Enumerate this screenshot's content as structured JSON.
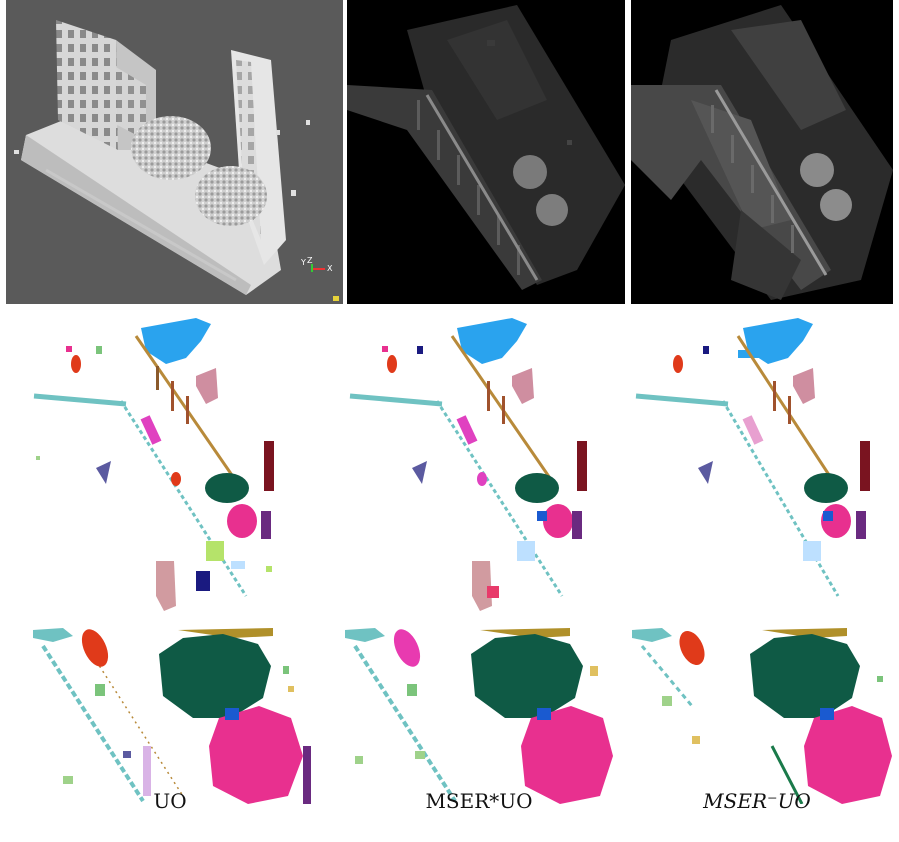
{
  "figure": {
    "axis_gizmo": {
      "y_label": "Y",
      "z_label": "Z",
      "x_label": "X"
    },
    "captions": [
      {
        "text": "UO"
      },
      {
        "text": "MSER*UO"
      },
      {
        "text": "MSER⁻UO"
      }
    ],
    "colors": {
      "background_dark": "#000000",
      "render_bg": "#5a5a5a",
      "tree_green": "#0f5a45",
      "tree_pink": "#e8308f",
      "sky_blue": "#2aa3ee",
      "maroon": "#7a1420",
      "rose": "#cf8ea0",
      "teal": "#6fc2c2"
    }
  }
}
